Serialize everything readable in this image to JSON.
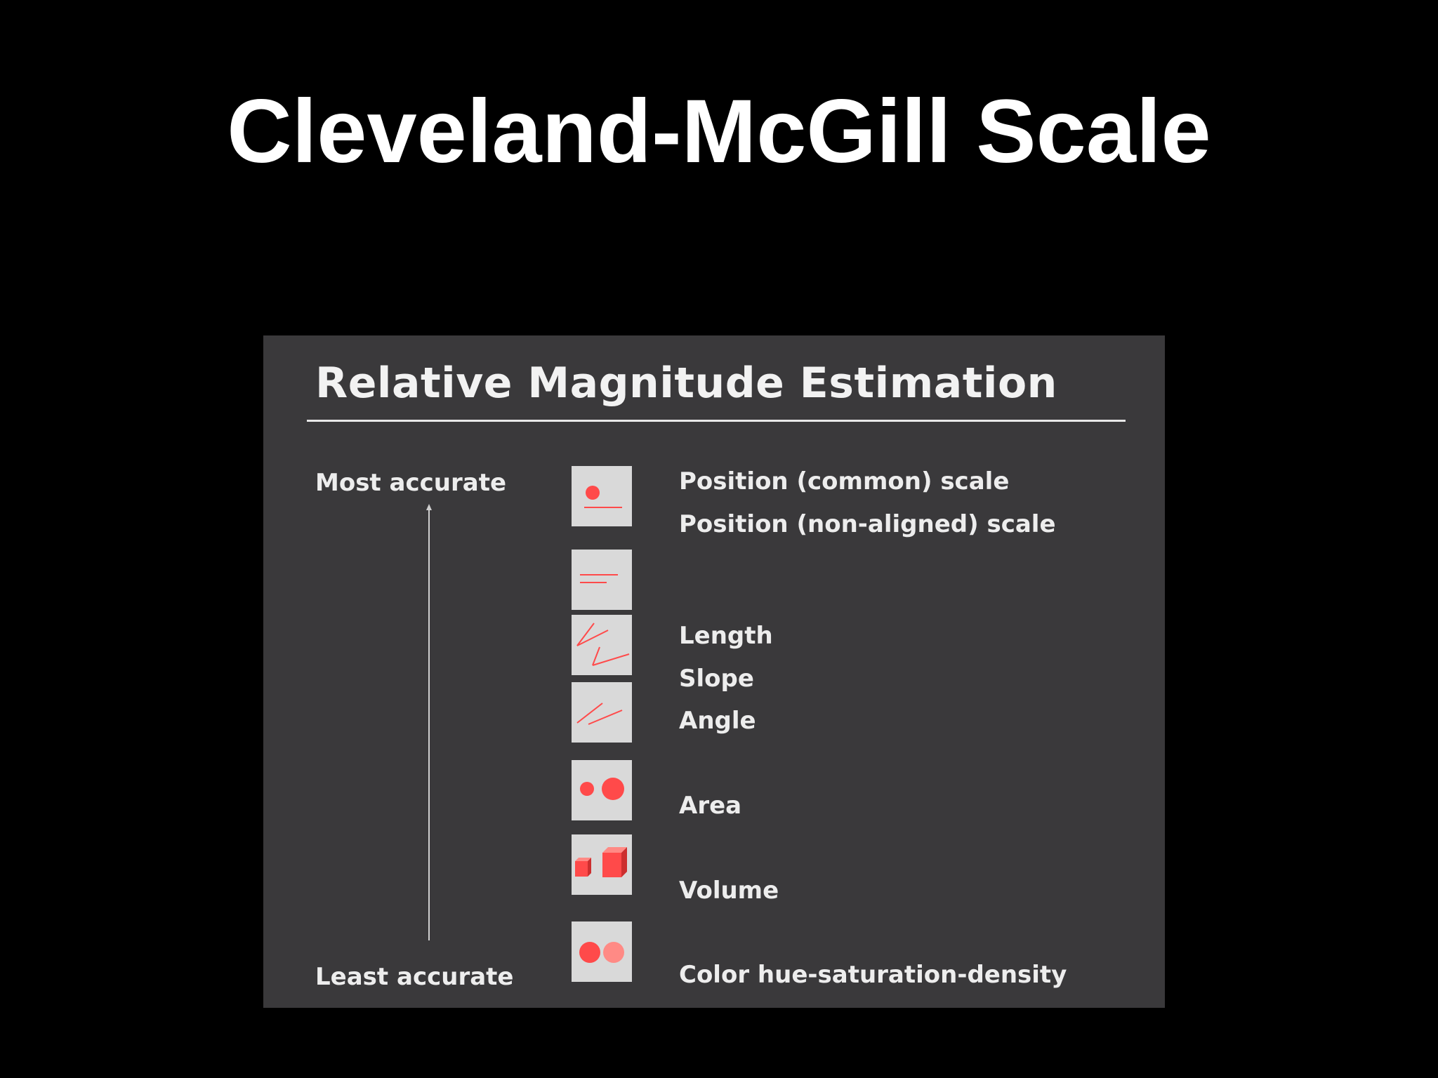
{
  "slide": {
    "title": "Cleveland-McGill Scale"
  },
  "panel": {
    "title": "Relative Magnitude Estimation",
    "most_label": "Most accurate",
    "least_label": "Least accurate"
  },
  "encodings": [
    "Position (common) scale",
    "Position (non-aligned) scale",
    "Length",
    "Slope",
    "Angle",
    "Area",
    "Volume",
    "Color hue-saturation-density"
  ],
  "icons": [
    "position-common-icon",
    "length-icon",
    "slope-icon",
    "angle-icon",
    "area-icon",
    "volume-icon",
    "color-saturation-icon"
  ],
  "colors": {
    "background": "#000000",
    "panel": "#3a393b",
    "icon_box": "#d9d9d9",
    "accent_red": "#ff4a4a",
    "accent_light_red": "#ff8a85",
    "text": "#ededed"
  }
}
